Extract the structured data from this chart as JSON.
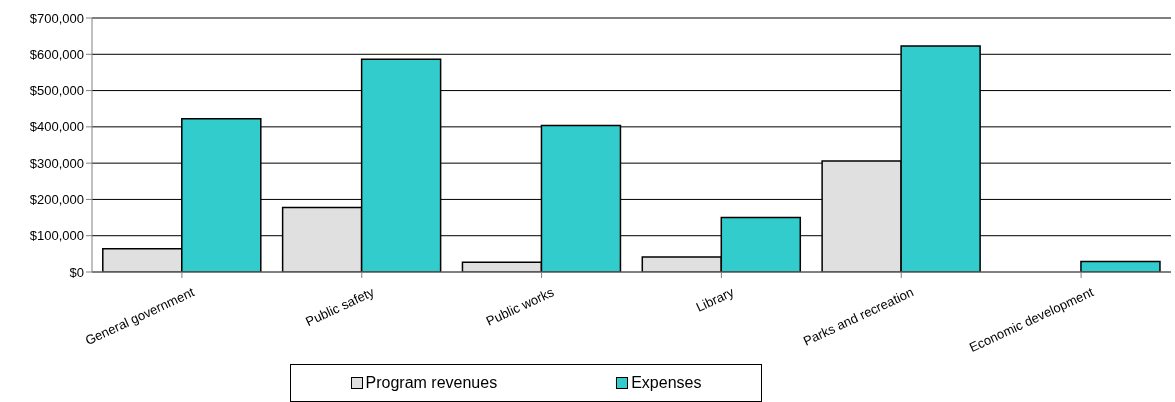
{
  "chart_data": {
    "type": "bar",
    "categories": [
      "General government",
      "Public safety",
      "Public works",
      "Library",
      "Parks and recreation",
      "Economic development"
    ],
    "series": [
      {
        "name": "Program revenues",
        "color": "#e0e0e0",
        "values": [
          64000,
          178000,
          27000,
          41000,
          306000,
          null
        ]
      },
      {
        "name": "Expenses",
        "color": "#33cccc",
        "values": [
          422000,
          586000,
          404000,
          150000,
          623000,
          29000
        ]
      }
    ],
    "ylim": [
      0,
      700000
    ],
    "yticks": [
      {
        "value": 0,
        "label": "$0"
      },
      {
        "value": 100000,
        "label": "$100,000"
      },
      {
        "value": 200000,
        "label": "$200,000"
      },
      {
        "value": 300000,
        "label": "$300,000"
      },
      {
        "value": 400000,
        "label": "$400,000"
      },
      {
        "value": 500000,
        "label": "$500,000"
      },
      {
        "value": 600000,
        "label": "$600,000"
      },
      {
        "value": 700000,
        "label": "$700,000"
      }
    ],
    "grid": "y",
    "legend": "bottom"
  }
}
